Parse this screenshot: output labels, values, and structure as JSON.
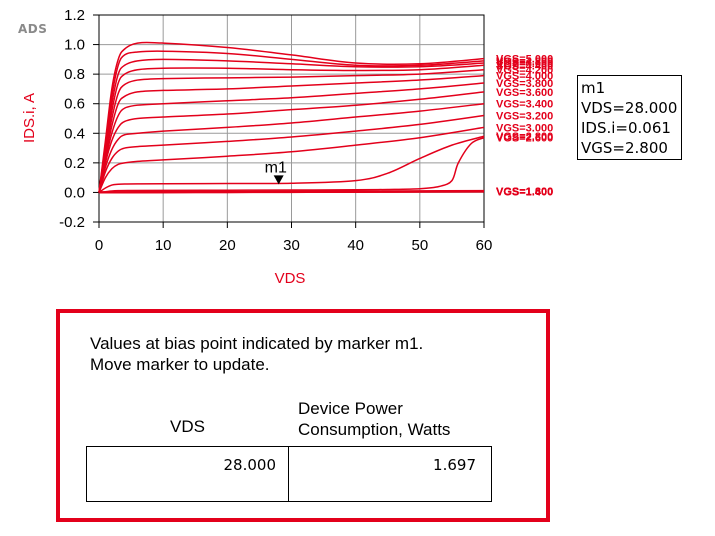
{
  "logo": "ADS",
  "chart_data": {
    "type": "line",
    "xlabel": "VDS",
    "ylabel": "IDS.i, A",
    "xlim": [
      0,
      60
    ],
    "ylim": [
      -0.2,
      1.2
    ],
    "x_ticks": [
      "0",
      "10",
      "20",
      "30",
      "40",
      "50",
      "60"
    ],
    "y_ticks": [
      "-0.2",
      "0.0",
      "0.2",
      "0.4",
      "0.6",
      "0.8",
      "1.0",
      "1.2"
    ],
    "grid": true,
    "line_color": "#e3001b",
    "label_color": "#e3001b",
    "series": [
      {
        "name": "VGS=5.000",
        "x": [
          0,
          1,
          2,
          3,
          4,
          6,
          10,
          20,
          30,
          40,
          50,
          60
        ],
        "y": [
          0,
          0.35,
          0.7,
          0.9,
          0.97,
          1.01,
          1.01,
          0.98,
          0.93,
          0.875,
          0.87,
          0.905
        ]
      },
      {
        "name": "VGS=4.800",
        "x": [
          0,
          1,
          2,
          3,
          4,
          6,
          10,
          20,
          30,
          40,
          50,
          60
        ],
        "y": [
          0,
          0.32,
          0.65,
          0.86,
          0.93,
          0.95,
          0.955,
          0.94,
          0.9,
          0.86,
          0.86,
          0.89
        ]
      },
      {
        "name": "VGS=4.600",
        "x": [
          0,
          1,
          2,
          3,
          4,
          6,
          10,
          20,
          30,
          40,
          50,
          60
        ],
        "y": [
          0,
          0.3,
          0.6,
          0.8,
          0.86,
          0.89,
          0.9,
          0.89,
          0.87,
          0.85,
          0.85,
          0.875
        ]
      },
      {
        "name": "VGS=4.400",
        "x": [
          0,
          1,
          2,
          3,
          4,
          6,
          10,
          20,
          30,
          40,
          50,
          60
        ],
        "y": [
          0,
          0.28,
          0.55,
          0.74,
          0.8,
          0.83,
          0.84,
          0.84,
          0.83,
          0.825,
          0.83,
          0.86
        ]
      },
      {
        "name": "VGS=4.200",
        "x": [
          0,
          1,
          2,
          3,
          4,
          6,
          10,
          20,
          30,
          40,
          50,
          60
        ],
        "y": [
          0,
          0.26,
          0.5,
          0.67,
          0.73,
          0.76,
          0.77,
          0.775,
          0.78,
          0.79,
          0.8,
          0.83
        ]
      },
      {
        "name": "VGS=4.000",
        "x": [
          0,
          1,
          2,
          3,
          4,
          6,
          10,
          20,
          30,
          40,
          50,
          60
        ],
        "y": [
          0,
          0.24,
          0.45,
          0.6,
          0.65,
          0.68,
          0.69,
          0.7,
          0.72,
          0.74,
          0.76,
          0.79
        ]
      },
      {
        "name": "VGS=3.800",
        "x": [
          0,
          1,
          2,
          3,
          4,
          6,
          10,
          20,
          30,
          40,
          50,
          60
        ],
        "y": [
          0,
          0.22,
          0.4,
          0.52,
          0.57,
          0.59,
          0.6,
          0.62,
          0.64,
          0.67,
          0.7,
          0.74
        ]
      },
      {
        "name": "VGS=3.600",
        "x": [
          0,
          1,
          2,
          3,
          4,
          6,
          10,
          20,
          30,
          40,
          50,
          60
        ],
        "y": [
          0,
          0.2,
          0.35,
          0.44,
          0.48,
          0.5,
          0.51,
          0.53,
          0.56,
          0.59,
          0.63,
          0.68
        ]
      },
      {
        "name": "VGS=3.400",
        "x": [
          0,
          1,
          2,
          3,
          4,
          6,
          10,
          20,
          30,
          40,
          50,
          60
        ],
        "y": [
          0,
          0.17,
          0.29,
          0.36,
          0.39,
          0.4,
          0.415,
          0.44,
          0.47,
          0.51,
          0.55,
          0.6
        ]
      },
      {
        "name": "VGS=3.200",
        "x": [
          0,
          1,
          2,
          3,
          4,
          6,
          10,
          20,
          30,
          40,
          50,
          60
        ],
        "y": [
          0,
          0.14,
          0.23,
          0.28,
          0.3,
          0.31,
          0.32,
          0.345,
          0.375,
          0.415,
          0.46,
          0.52
        ]
      },
      {
        "name": "VGS=3.000",
        "x": [
          0,
          1,
          2,
          3,
          4,
          6,
          10,
          20,
          30,
          40,
          50,
          60
        ],
        "y": [
          0,
          0.1,
          0.16,
          0.19,
          0.2,
          0.21,
          0.22,
          0.245,
          0.275,
          0.32,
          0.37,
          0.44
        ]
      },
      {
        "name": "VGS=2.800",
        "x": [
          0,
          1,
          2,
          3,
          4,
          6,
          10,
          20,
          30,
          40,
          45,
          50,
          55,
          60
        ],
        "y": [
          0,
          0.03,
          0.05,
          0.055,
          0.057,
          0.058,
          0.059,
          0.06,
          0.062,
          0.08,
          0.13,
          0.23,
          0.32,
          0.38
        ]
      },
      {
        "name": "VGS=2.600",
        "x": [
          0,
          1,
          2,
          3,
          5,
          10,
          20,
          30,
          40,
          45,
          50,
          53,
          55,
          56,
          58,
          60
        ],
        "y": [
          0,
          0.005,
          0.01,
          0.012,
          0.013,
          0.014,
          0.015,
          0.016,
          0.018,
          0.02,
          0.025,
          0.04,
          0.08,
          0.2,
          0.33,
          0.37
        ]
      },
      {
        "name": "VGS=1.400",
        "x": [
          0,
          10,
          20,
          30,
          40,
          50,
          60
        ],
        "y": [
          0,
          0.001,
          0.002,
          0.003,
          0.004,
          0.005,
          0.006
        ]
      },
      {
        "name": "VGS=1.600",
        "x": [
          0,
          10,
          20,
          30,
          40,
          50,
          60
        ],
        "y": [
          0,
          0.002,
          0.003,
          0.004,
          0.005,
          0.006,
          0.008
        ]
      },
      {
        "name": "VGS=1.800",
        "x": [
          0,
          10,
          20,
          30,
          40,
          50,
          60
        ],
        "y": [
          0,
          0.003,
          0.004,
          0.005,
          0.006,
          0.008,
          0.01
        ]
      }
    ],
    "marker": {
      "name": "m1",
      "x": 28,
      "y": 0.061
    }
  },
  "marker_readout": {
    "name": "m1",
    "vds": "VDS=28.000",
    "ids": "IDS.i=0.061",
    "vgs": "VGS=2.800"
  },
  "panel": {
    "message_line1": "Values at bias point indicated by marker m1.",
    "message_line2": "Move marker to update.",
    "col1_header": "VDS",
    "col2_header_line1": "Device Power",
    "col2_header_line2": "Consumption, Watts",
    "vds_value": "28.000",
    "power_value": "1.697"
  }
}
